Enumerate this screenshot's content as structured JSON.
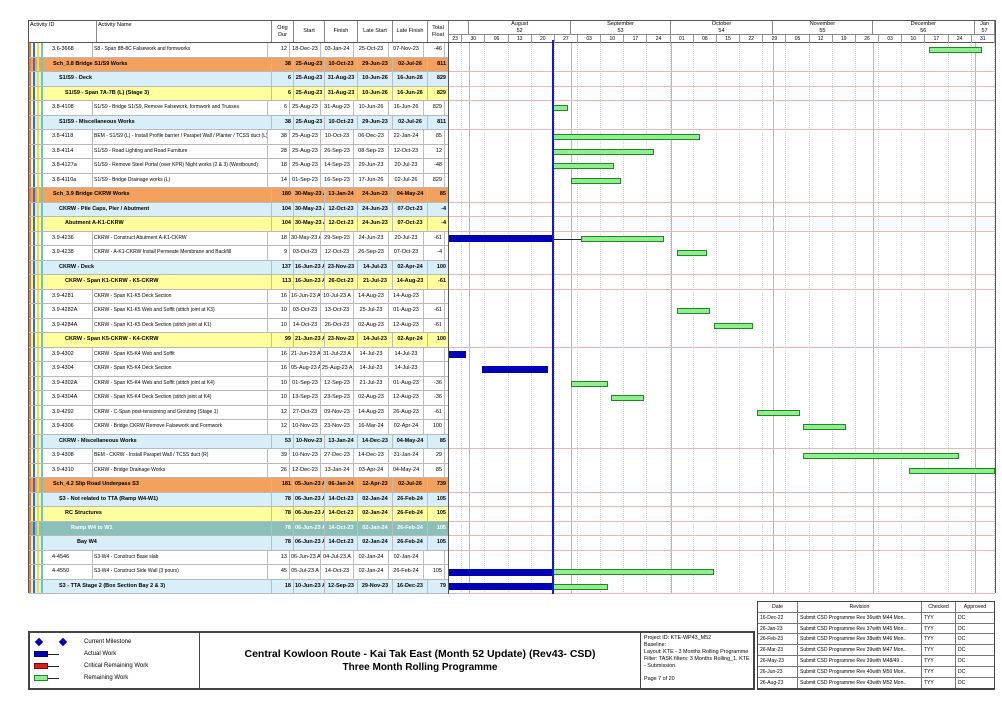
{
  "table": {
    "columns": [
      "Activity ID",
      "Activity Name",
      "Orig Dur",
      "Start",
      "Finish",
      "Late Start",
      "Late Finish",
      "Total Float"
    ]
  },
  "timeline": {
    "window_start": "2023-07-26",
    "window_days": 165,
    "data_date": "2023-08-26",
    "months": [
      {
        "label": "",
        "num": "",
        "days": 6
      },
      {
        "label": "August",
        "num": "52",
        "days": 31
      },
      {
        "label": "September",
        "num": "53",
        "days": 30
      },
      {
        "label": "October",
        "num": "54",
        "days": 31
      },
      {
        "label": "November",
        "num": "55",
        "days": 30
      },
      {
        "label": "December",
        "num": "56",
        "days": 31
      },
      {
        "label": "Jan",
        "num": "57",
        "days": 6
      }
    ],
    "weeks": [
      {
        "label": "23",
        "days": 4
      },
      {
        "label": "30",
        "days": 7
      },
      {
        "label": "06",
        "days": 7
      },
      {
        "label": "13",
        "days": 7
      },
      {
        "label": "20",
        "days": 7
      },
      {
        "label": "27",
        "days": 7
      },
      {
        "label": "03",
        "days": 7
      },
      {
        "label": "10",
        "days": 7
      },
      {
        "label": "17",
        "days": 7
      },
      {
        "label": "24",
        "days": 7
      },
      {
        "label": "01",
        "days": 7
      },
      {
        "label": "08",
        "days": 7
      },
      {
        "label": "15",
        "days": 7
      },
      {
        "label": "22",
        "days": 7
      },
      {
        "label": "29",
        "days": 7
      },
      {
        "label": "05",
        "days": 7
      },
      {
        "label": "12",
        "days": 7
      },
      {
        "label": "19",
        "days": 7
      },
      {
        "label": "26",
        "days": 7
      },
      {
        "label": "03",
        "days": 7
      },
      {
        "label": "10",
        "days": 7
      },
      {
        "label": "17",
        "days": 7
      },
      {
        "label": "24",
        "days": 7
      },
      {
        "label": "31",
        "days": 7
      }
    ]
  },
  "rows": [
    {
      "t": "task",
      "id": "3.6-3668",
      "name": "S8 - Span 8B-8C Falsework and formworks",
      "od": "12",
      "st": "18-Dec-23",
      "fn": "03-Jan-24",
      "ls": "25-Oct-23",
      "lf": "07-Nov-23",
      "tf": "-46",
      "bars": [
        {
          "k": "r",
          "s": "2023-12-18",
          "e": "2024-01-03"
        }
      ]
    },
    {
      "t": "s1",
      "name": "Sch_3.8 Bridge S1/S9 Works",
      "od": "38",
      "st": "25-Aug-23",
      "fn": "10-Oct-23",
      "ls": "29-Jun-23",
      "lf": "02-Jul-26",
      "tf": "811",
      "bars": []
    },
    {
      "t": "s2",
      "name": "S1/S9 - Deck",
      "od": "6",
      "st": "25-Aug-23",
      "fn": "31-Aug-23",
      "ls": "10-Jun-26",
      "lf": "16-Jun-26",
      "tf": "829",
      "bars": []
    },
    {
      "t": "s3",
      "name": "S1/S9 - Span 7A-7B (L) (Stage 3)",
      "od": "6",
      "st": "25-Aug-23",
      "fn": "31-Aug-23",
      "ls": "10-Jun-26",
      "lf": "16-Jun-26",
      "tf": "829",
      "bars": []
    },
    {
      "t": "task",
      "id": "3.8-4108",
      "name": "S1/S9 - Bridge S1/S9, Remove Falsework, formwork and Trusses",
      "od": "6",
      "st": "25-Aug-23",
      "fn": "31-Aug-23",
      "ls": "10-Jun-26",
      "lf": "16-Jun-26",
      "tf": "829",
      "bars": [
        {
          "k": "r",
          "s": "2023-08-26",
          "e": "2023-08-31"
        }
      ]
    },
    {
      "t": "s2",
      "name": "S1/S9 - Miscellaneous Works",
      "od": "38",
      "st": "25-Aug-23",
      "fn": "10-Oct-23",
      "ls": "29-Jun-23",
      "lf": "02-Jul-26",
      "tf": "811",
      "bars": []
    },
    {
      "t": "task",
      "id": "3.8-4118",
      "name": "BEM - S1/S9 (L) - Install Profile barrier / Parapet Wall / Planter / TCSS duct (L)",
      "od": "38",
      "st": "25-Aug-23",
      "fn": "10-Oct-23",
      "ls": "06-Dec-23",
      "lf": "22-Jan-24",
      "tf": "85",
      "bars": [
        {
          "k": "r",
          "s": "2023-08-26",
          "e": "2023-10-10"
        }
      ]
    },
    {
      "t": "task",
      "id": "3.8-4114",
      "name": "S1/S9 - Road Lighting and Road Furniture",
      "od": "28",
      "st": "25-Aug-23",
      "fn": "26-Sep-23",
      "ls": "08-Sep-23",
      "lf": "12-Oct-23",
      "tf": "12",
      "bars": [
        {
          "k": "r",
          "s": "2023-08-26",
          "e": "2023-09-26"
        }
      ]
    },
    {
      "t": "task",
      "id": "3.8-4127a",
      "name": "S1/S9 - Remove Steel Portal (over KPR) Night works (2 & 3) (Westbound)",
      "od": "18",
      "st": "25-Aug-23",
      "fn": "14-Sep-23",
      "ls": "29-Jun-23",
      "lf": "20-Jul-23",
      "tf": "-48",
      "bars": [
        {
          "k": "r",
          "s": "2023-08-26",
          "e": "2023-09-14"
        }
      ]
    },
    {
      "t": "task",
      "id": "3.8-4110a",
      "name": "S1/S9 - Bridge Drainage works (L)",
      "od": "14",
      "st": "01-Sep-23",
      "fn": "16-Sep-23",
      "ls": "17-Jun-26",
      "lf": "02-Jul-26",
      "tf": "829",
      "bars": [
        {
          "k": "r",
          "s": "2023-09-01",
          "e": "2023-09-16"
        }
      ]
    },
    {
      "t": "s1",
      "name": "Sch_3.9 Bridge CKRW Works",
      "od": "180",
      "st": "30-May-23 A",
      "fn": "13-Jan-24",
      "ls": "24-Jun-23",
      "lf": "04-May-24",
      "tf": "85",
      "bars": []
    },
    {
      "t": "s2",
      "name": "CKRW - Pile Caps, Pier / Abutment",
      "od": "104",
      "st": "30-May-23 A",
      "fn": "12-Oct-23",
      "ls": "24-Jun-23",
      "lf": "07-Oct-23",
      "tf": "-4",
      "bars": []
    },
    {
      "t": "s3",
      "name": "Abutment A-K1-CKRW",
      "od": "104",
      "st": "30-May-23 A",
      "fn": "12-Oct-23",
      "ls": "24-Jun-23",
      "lf": "07-Oct-23",
      "tf": "-4",
      "bars": []
    },
    {
      "t": "task",
      "id": "3.9-4236",
      "name": "CKRW - Construct Abutment A-K1-CKRW",
      "od": "18",
      "st": "30-May-23 A",
      "fn": "29-Sep-23",
      "ls": "24-Jun-23",
      "lf": "20-Jul-23",
      "tf": "-61",
      "bars": [
        {
          "k": "a",
          "s": "2023-07-26",
          "e": "2023-08-26"
        },
        {
          "k": "c",
          "s": "2023-08-26",
          "e": "2023-09-04"
        },
        {
          "k": "r",
          "s": "2023-09-04",
          "e": "2023-09-29"
        }
      ]
    },
    {
      "t": "task",
      "id": "3.9-4238",
      "name": "CKRW - A-K1-CKRW Install Permeate Membrane and Backfill",
      "od": "9",
      "st": "03-Oct-23",
      "fn": "12-Oct-23",
      "ls": "26-Sep-23",
      "lf": "07-Oct-23",
      "tf": "-4",
      "bars": [
        {
          "k": "r",
          "s": "2023-10-03",
          "e": "2023-10-12"
        }
      ]
    },
    {
      "t": "s2",
      "name": "CKRW - Deck",
      "od": "137",
      "st": "16-Jun-23 A",
      "fn": "23-Nov-23",
      "ls": "14-Jul-23",
      "lf": "02-Apr-24",
      "tf": "100",
      "bars": []
    },
    {
      "t": "s3",
      "name": "CKRW - Span K1-CKRW - K5-CKRW",
      "od": "113",
      "st": "16-Jun-23 A",
      "fn": "26-Oct-23",
      "ls": "21-Jul-23",
      "lf": "14-Aug-23",
      "tf": "-61",
      "bars": []
    },
    {
      "t": "task",
      "id": "3.9-4281",
      "name": "CKRW - Span K1-K5 Deck Section",
      "od": "16",
      "st": "16-Jun-23 A",
      "fn": "10-Jul-23 A",
      "ls": "14-Aug-23",
      "lf": "14-Aug-23",
      "tf": "",
      "bars": []
    },
    {
      "t": "task",
      "id": "3.9-4282A",
      "name": "CKRW - Span K1-K5 Web and Soffit (stitch joint at K3)",
      "od": "10",
      "st": "03-Oct-23",
      "fn": "13-Oct-23",
      "ls": "25-Jul-23",
      "lf": "01-Aug-23",
      "tf": "-61",
      "bars": [
        {
          "k": "r",
          "s": "2023-10-03",
          "e": "2023-10-13"
        }
      ]
    },
    {
      "t": "task",
      "id": "3.9-4284A",
      "name": "CKRW - Span K1-K5 Deck Section (stitch joint at K1)",
      "od": "10",
      "st": "14-Oct-23",
      "fn": "26-Oct-23",
      "ls": "02-Aug-23",
      "lf": "12-Aug-23",
      "tf": "-61",
      "bars": [
        {
          "k": "r",
          "s": "2023-10-14",
          "e": "2023-10-26"
        }
      ]
    },
    {
      "t": "s3",
      "name": "CKRW - Span K5-CKRW - K4-CKRW",
      "od": "99",
      "st": "21-Jun-23 A",
      "fn": "23-Nov-23",
      "ls": "14-Jul-23",
      "lf": "02-Apr-24",
      "tf": "100",
      "bars": []
    },
    {
      "t": "task",
      "id": "3.9-4302",
      "name": "CKRW - Span K5-K4 Web and Soffit",
      "od": "16",
      "st": "21-Jun-23 A",
      "fn": "31-Jul-23 A",
      "ls": "14-Jul-23",
      "lf": "14-Jul-23",
      "tf": "",
      "bars": [
        {
          "k": "a",
          "s": "2023-07-26",
          "e": "2023-07-31"
        }
      ]
    },
    {
      "t": "task",
      "id": "3.9-4304",
      "name": "CKRW - Span K5-K4 Deck Section",
      "od": "16",
      "st": "05-Aug-23 A",
      "fn": "25-Aug-23 A",
      "ls": "14-Jul-23",
      "lf": "14-Jul-23",
      "tf": "",
      "bars": [
        {
          "k": "a",
          "s": "2023-08-05",
          "e": "2023-08-25"
        }
      ]
    },
    {
      "t": "task",
      "id": "3.9-4302A",
      "name": "CKRW - Span K5-K4 Web and Soffit (stitch joint at K4)",
      "od": "10",
      "st": "01-Sep-23",
      "fn": "12-Sep-23",
      "ls": "21-Jul-23",
      "lf": "01-Aug-23",
      "tf": "-36",
      "bars": [
        {
          "k": "r",
          "s": "2023-09-01",
          "e": "2023-09-12"
        }
      ]
    },
    {
      "t": "task",
      "id": "3.9-4304A",
      "name": "CKRW - Span K5-K4 Deck Section (stitch joint at K4)",
      "od": "10",
      "st": "13-Sep-23",
      "fn": "23-Sep-23",
      "ls": "02-Aug-23",
      "lf": "12-Aug-23",
      "tf": "-36",
      "bars": [
        {
          "k": "r",
          "s": "2023-09-13",
          "e": "2023-09-23"
        }
      ]
    },
    {
      "t": "task",
      "id": "3.9-4292",
      "name": "CKRW - C-Span post-tensioning and Grouting (Stage 1)",
      "od": "12",
      "st": "27-Oct-23",
      "fn": "09-Nov-23",
      "ls": "14-Aug-23",
      "lf": "26-Aug-23",
      "tf": "-61",
      "bars": [
        {
          "k": "r",
          "s": "2023-10-27",
          "e": "2023-11-09"
        }
      ]
    },
    {
      "t": "task",
      "id": "3.9-4306",
      "name": "CKRW - Bridge CKRW Remove Falsework and Formwork",
      "od": "12",
      "st": "10-Nov-23",
      "fn": "23-Nov-23",
      "ls": "16-Mar-24",
      "lf": "02-Apr-24",
      "tf": "100",
      "bars": [
        {
          "k": "r",
          "s": "2023-11-10",
          "e": "2023-11-23"
        }
      ]
    },
    {
      "t": "s2",
      "name": "CKRW - Miscellaneous Works",
      "od": "53",
      "st": "10-Nov-23",
      "fn": "13-Jan-24",
      "ls": "14-Dec-23",
      "lf": "04-May-24",
      "tf": "85",
      "bars": []
    },
    {
      "t": "task",
      "id": "3.9-4308",
      "name": "BEM - CKRW - Install Parapet Wall / TCSS duct (R)",
      "od": "39",
      "st": "10-Nov-23",
      "fn": "27-Dec-23",
      "ls": "14-Dec-23",
      "lf": "31-Jan-24",
      "tf": "29",
      "bars": [
        {
          "k": "r",
          "s": "2023-11-10",
          "e": "2023-12-27"
        }
      ]
    },
    {
      "t": "task",
      "id": "3.9-4310",
      "name": "CKRW - Bridge Drainage Works",
      "od": "26",
      "st": "12-Dec-23",
      "fn": "13-Jan-24",
      "ls": "03-Apr-24",
      "lf": "04-May-24",
      "tf": "85",
      "bars": [
        {
          "k": "r",
          "s": "2023-12-12",
          "e": "2024-01-07"
        }
      ]
    },
    {
      "t": "s1",
      "name": "Sch_4.2 Slip Road Underpass S3",
      "od": "181",
      "st": "05-Jun-23 A",
      "fn": "06-Jan-24",
      "ls": "12-Apr-23",
      "lf": "02-Jul-26",
      "tf": "739",
      "bars": []
    },
    {
      "t": "s2",
      "name": "S3 - Not related to TTA (Ramp W4-W1)",
      "od": "78",
      "st": "06-Jun-23 A",
      "fn": "14-Oct-23",
      "ls": "02-Jan-24",
      "lf": "26-Feb-24",
      "tf": "105",
      "bars": []
    },
    {
      "t": "s3",
      "name": "RC Structures",
      "od": "78",
      "st": "06-Jun-23 A",
      "fn": "14-Oct-23",
      "ls": "02-Jan-24",
      "lf": "26-Feb-24",
      "tf": "105",
      "bars": []
    },
    {
      "t": "s4",
      "name": "Ramp W4 to W1",
      "od": "78",
      "st": "06-Jun-23 A",
      "fn": "14-Oct-23",
      "ls": "02-Jan-24",
      "lf": "26-Feb-24",
      "tf": "105",
      "bars": []
    },
    {
      "t": "s5",
      "name": "Bay W4",
      "od": "78",
      "st": "06-Jun-23 A",
      "fn": "14-Oct-23",
      "ls": "02-Jan-24",
      "lf": "26-Feb-24",
      "tf": "105",
      "bars": []
    },
    {
      "t": "task",
      "id": "4-4546",
      "name": "S3-W4 - Construct Base slab",
      "od": "13",
      "st": "06-Jun-23 A",
      "fn": "04-Jul-23 A",
      "ls": "02-Jan-24",
      "lf": "02-Jan-24",
      "tf": "",
      "bars": []
    },
    {
      "t": "task",
      "id": "4-4550",
      "name": "S3-W4 - Construct Side Wall (3 pours)",
      "od": "45",
      "st": "05-Jul-23 A",
      "fn": "14-Oct-23",
      "ls": "02-Jan-24",
      "lf": "26-Feb-24",
      "tf": "105",
      "bars": [
        {
          "k": "a",
          "s": "2023-07-26",
          "e": "2023-08-26"
        },
        {
          "k": "r",
          "s": "2023-08-26",
          "e": "2023-10-14"
        }
      ]
    },
    {
      "t": "s2",
      "name": "S3 - TTA Stage 2 (Box Section Bay 2 & 3)",
      "od": "18",
      "st": "10-Jun-23 A",
      "fn": "12-Sep-23",
      "ls": "29-Nov-23",
      "lf": "16-Dec-23",
      "tf": "79",
      "bars": [
        {
          "k": "a",
          "s": "2023-07-26",
          "e": "2023-08-26"
        },
        {
          "k": "r",
          "s": "2023-08-26",
          "e": "2023-09-12"
        }
      ]
    }
  ],
  "legend": {
    "items": [
      {
        "icon": "milestone",
        "label": "Current Milestone",
        "color": "#0000b4"
      },
      {
        "icon": "bar",
        "label": "Actual Work",
        "fill": "#0000b4",
        "border": "#000080"
      },
      {
        "icon": "bar",
        "label": "Critical Remaining Work",
        "fill": "#d42020",
        "border": "#8c0000"
      },
      {
        "icon": "bar",
        "label": "Remaining Work",
        "fill": "#90ee90",
        "border": "#1f8a1f"
      }
    ]
  },
  "titleblock": {
    "line1": "Central Kowloon Route - Kai Tak East (Month 52 Update) (Rev43- CSD)",
    "line2": "Three Month Rolling Programme"
  },
  "info": {
    "project_id": "Project ID: KTE-WP43_M52",
    "baseline": "Baseline:",
    "layout": "Layout: KTE - 3 Months Rolling Programme",
    "filter": "Filter: TASK filters: 3 Months Rolling_1, KTE - Submission.",
    "page": "Page 7 of 20"
  },
  "revisions": {
    "columns": [
      "Date",
      "Revision",
      "Checked",
      "Approved"
    ],
    "rows": [
      [
        "16-Dec-22",
        "Submit CSD Programme Rev 36with M44 Mon..",
        "TYY",
        "DC"
      ],
      [
        "26-Jan-23",
        "Submit CSD Programme Rev 37with M45 Mon..",
        "TYY",
        "DC"
      ],
      [
        "26-Feb-23",
        "Submit CSD Programme Rev 38with M46 Mon..",
        "TYY",
        "DC"
      ],
      [
        "26-Mar-23",
        "Submit CSD Programme Rev 39with M47 Mon..",
        "TYY",
        "DC"
      ],
      [
        "26-May-23",
        "Submit CSD Programme Rev 39with M48/49 ..",
        "TYY",
        "DC"
      ],
      [
        "26-Jun-23",
        "Submit CSD Programme Rev 40with M50 Mon..",
        "TYY",
        "DC"
      ],
      [
        "26-Aug-23",
        "Submit CSD Programme Rev 43with M52 Mon..",
        "TYY",
        "DC"
      ]
    ]
  },
  "chart_data": {
    "type": "gantt",
    "title": "Central Kowloon Route - Kai Tak East (Month 52 Update) (Rev43- CSD) — Three Month Rolling Programme",
    "x_axis": {
      "start": "2023-07-26",
      "end": "2024-01-07",
      "major_ticks": [
        "August 52",
        "September 53",
        "October 54",
        "November 55",
        "December 56",
        "Jan 57"
      ],
      "minor_tick_unit": "week"
    },
    "data_date": "2023-08-26",
    "legend_position": "bottom-left",
    "grid": true,
    "bars_note": "bar spans per activity are listed in rows[].bars with k=a(actual)/r(remaining)/c(connector)"
  }
}
